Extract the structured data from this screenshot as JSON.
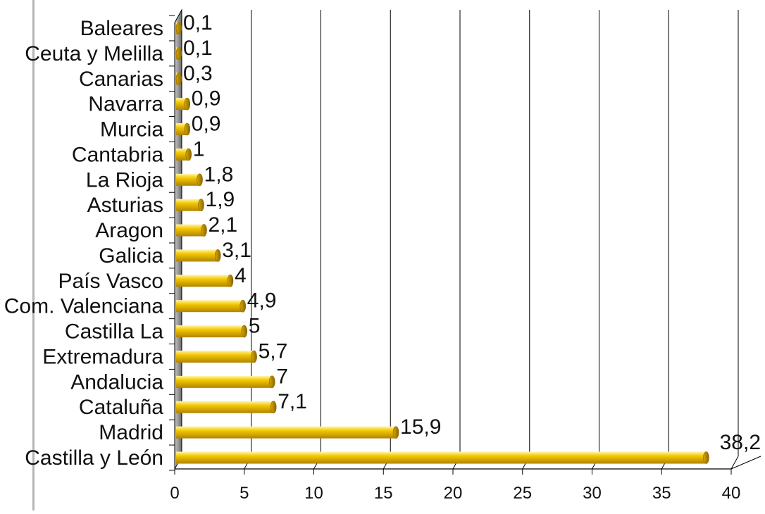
{
  "chart_data": {
    "type": "bar",
    "orientation": "horizontal",
    "style": "3d-cylinder",
    "title": "",
    "xlabel": "",
    "ylabel": "",
    "categories": [
      "Baleares",
      "Ceuta y Melilla",
      "Canarias",
      "Navarra",
      "Murcia",
      "Cantabria",
      "La Rioja",
      "Asturias",
      "Aragon",
      "Galicia",
      "País Vasco",
      "Com. Valenciana",
      "Castilla La",
      "Extremadura",
      "Andalucia",
      "Cataluña",
      "Madrid",
      "Castilla y León"
    ],
    "values": [
      0.1,
      0.1,
      0.3,
      0.9,
      0.9,
      1,
      1.8,
      1.9,
      2.1,
      3.1,
      4,
      4.9,
      5,
      5.7,
      7,
      7.1,
      15.9,
      38.2
    ],
    "value_labels": [
      "0,1",
      "0,1",
      "0,3",
      "0,9",
      "0,9",
      "1",
      "1,8",
      "1,9",
      "2,1",
      "3,1",
      "4",
      "4,9",
      "5",
      "5,7",
      "7",
      "7,1",
      "15,9",
      "38,2"
    ],
    "xlim": [
      0,
      40
    ],
    "x_ticks": [
      0,
      5,
      10,
      15,
      20,
      25,
      30,
      35,
      40
    ],
    "x_tick_labels": [
      "0",
      "5",
      "10",
      "15",
      "20",
      "25",
      "30",
      "35",
      "40"
    ],
    "grid": true,
    "legend": "none",
    "colors": {
      "bar": "#f2c300",
      "bar_highlight": "#fff3a0",
      "bar_shadow": "#a67c00",
      "grid": "#000000",
      "wall": "#8a8a8a"
    }
  }
}
